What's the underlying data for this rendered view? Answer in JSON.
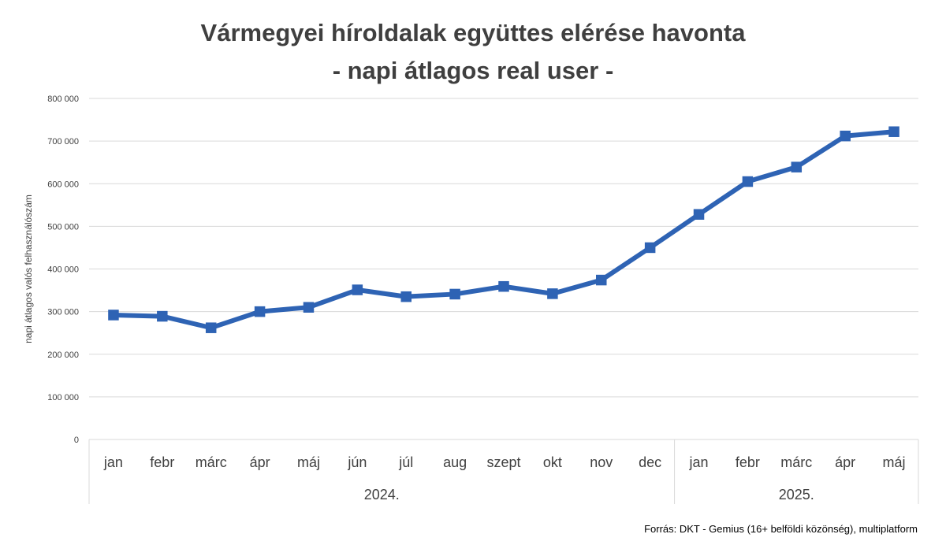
{
  "chart_data": {
    "type": "line",
    "title": [
      "Vármegyei híroldalak együttes elérése havonta",
      "- napi átlagos real user -"
    ],
    "ylabel": "napi átlagos valós felhasználószám",
    "xlabel": "",
    "ylim": [
      0,
      800000
    ],
    "yticks": [
      "0",
      "100 000",
      "200 000",
      "300 000",
      "400 000",
      "500 000",
      "600 000",
      "700 000",
      "800 000"
    ],
    "categories": [
      "jan",
      "febr",
      "márc",
      "ápr",
      "máj",
      "jún",
      "júl",
      "aug",
      "szept",
      "okt",
      "nov",
      "dec",
      "jan",
      "febr",
      "márc",
      "ápr",
      "máj"
    ],
    "groups": [
      {
        "label": "2024.",
        "count": 12
      },
      {
        "label": "2025.",
        "count": 5
      }
    ],
    "series": [
      {
        "name": "napi átlagos real user",
        "values": [
          292000,
          289000,
          262000,
          300000,
          310000,
          351000,
          335000,
          341000,
          359000,
          342000,
          374000,
          450000,
          528000,
          605000,
          639000,
          712000,
          722000
        ]
      }
    ],
    "color": "#2e63b4",
    "grid": true
  },
  "source": "Forrás: DKT - Gemius (16+ belföldi közönség), multiplatform"
}
